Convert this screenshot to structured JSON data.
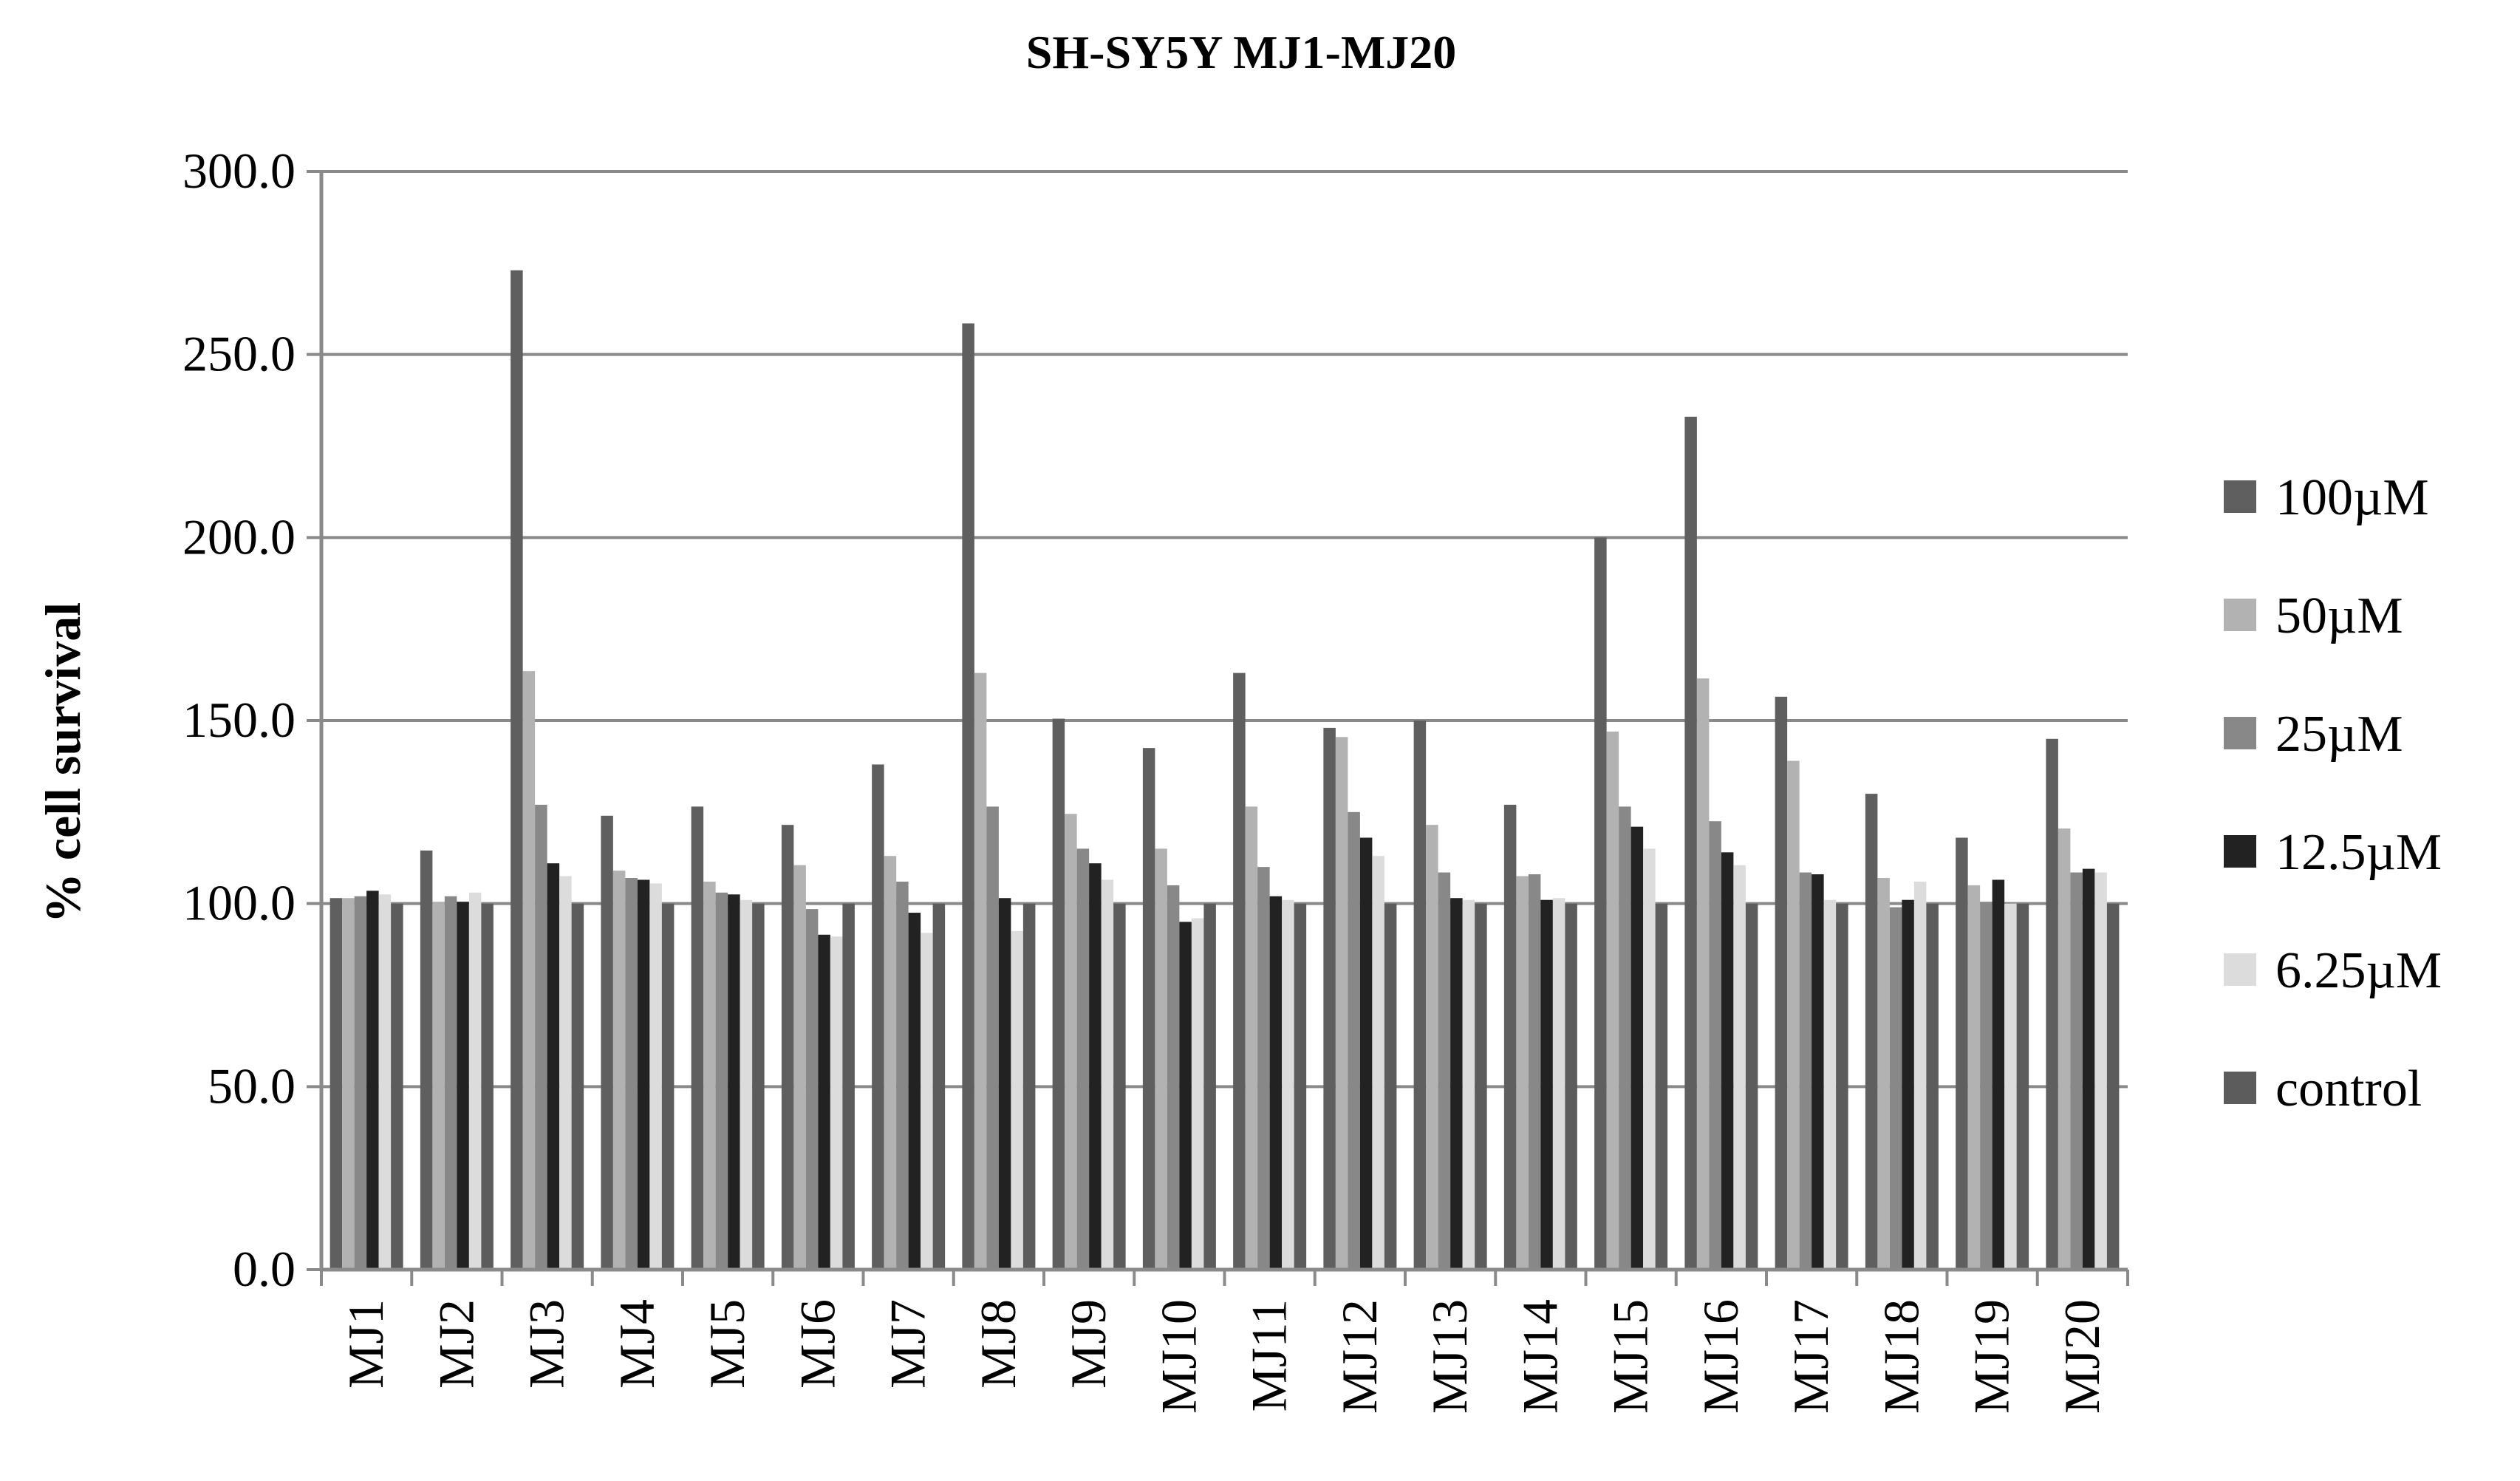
{
  "chart_data": {
    "type": "bar",
    "title": "SH-SY5Y MJ1-MJ20",
    "ylabel": "% cell survival",
    "xlabel": "",
    "ylim": [
      0,
      300
    ],
    "yticks": [
      "0.0",
      "50.0",
      "100.0",
      "150.0",
      "200.0",
      "250.0",
      "300.0"
    ],
    "grid": "horizontal",
    "legend_position": "right",
    "categories": [
      "MJ1",
      "MJ2",
      "MJ3",
      "MJ4",
      "MJ5",
      "MJ6",
      "MJ7",
      "MJ8",
      "MJ9",
      "MJ10",
      "MJ11",
      "MJ12",
      "MJ13",
      "MJ14",
      "MJ15",
      "MJ16",
      "MJ17",
      "MJ18",
      "MJ19",
      "MJ20"
    ],
    "series": [
      {
        "name": "100µM",
        "color": "#5f5f5f",
        "values": [
          101.5,
          114.5,
          273.0,
          124.0,
          126.5,
          121.5,
          138.0,
          258.5,
          150.5,
          142.5,
          163.0,
          148.0,
          150.0,
          127.0,
          200.0,
          233.0,
          156.5,
          130.0,
          118.0,
          145.0
        ]
      },
      {
        "name": "50µM",
        "color": "#b2b2b2",
        "values": [
          101.5,
          100.5,
          163.5,
          109.0,
          106.0,
          110.5,
          113.0,
          163.0,
          124.5,
          115.0,
          126.5,
          145.5,
          121.5,
          107.5,
          147.0,
          161.5,
          139.0,
          107.0,
          105.0,
          120.5
        ]
      },
      {
        "name": "25µM",
        "color": "#888888",
        "values": [
          102.0,
          102.0,
          127.0,
          107.0,
          103.0,
          98.5,
          106.0,
          126.5,
          115.0,
          105.0,
          110.0,
          125.0,
          108.5,
          108.0,
          126.5,
          122.5,
          108.5,
          99.0,
          100.5,
          108.5
        ]
      },
      {
        "name": "12.5µM",
        "color": "#222222",
        "values": [
          103.5,
          100.5,
          111.0,
          106.5,
          102.5,
          91.5,
          97.5,
          101.5,
          111.0,
          95.0,
          102.0,
          118.0,
          101.5,
          101.0,
          121.0,
          114.0,
          108.0,
          101.0,
          106.5,
          109.5
        ]
      },
      {
        "name": "6.25µM",
        "color": "#dcdcdc",
        "values": [
          102.5,
          103.0,
          107.5,
          105.5,
          101.0,
          91.0,
          92.0,
          92.5,
          106.5,
          96.0,
          101.0,
          113.0,
          101.0,
          101.5,
          115.0,
          110.5,
          101.0,
          106.0,
          100.0,
          108.5
        ]
      },
      {
        "name": "control",
        "color": "#5c5c5c",
        "values": [
          100,
          100,
          100,
          100,
          100,
          100,
          100,
          100,
          100,
          100,
          100,
          100,
          100,
          100,
          100,
          100,
          100,
          100,
          100,
          100
        ]
      }
    ]
  }
}
